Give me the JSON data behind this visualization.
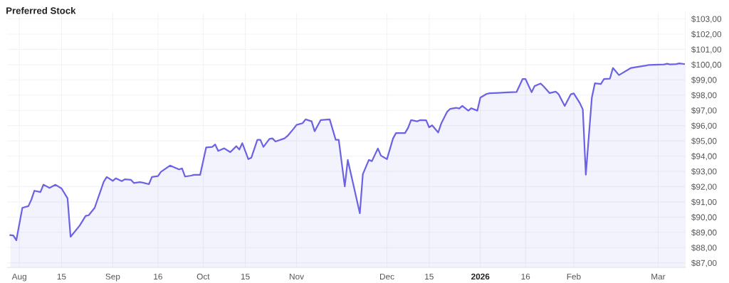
{
  "chart_data": {
    "type": "area",
    "title": "Preferred Stock",
    "x": [
      "2025-07-29",
      "2025-07-30",
      "2025-07-31",
      "2025-08-02",
      "2025-08-04",
      "2025-08-05",
      "2025-08-06",
      "2025-08-08",
      "2025-08-09",
      "2025-08-11",
      "2025-08-13",
      "2025-08-15",
      "2025-08-17",
      "2025-08-18",
      "2025-08-21",
      "2025-08-23",
      "2025-08-24",
      "2025-08-26",
      "2025-08-29",
      "2025-08-30",
      "2025-09-01",
      "2025-09-02",
      "2025-09-04",
      "2025-09-05",
      "2025-09-07",
      "2025-09-08",
      "2025-09-10",
      "2025-09-11",
      "2025-09-13",
      "2025-09-14",
      "2025-09-16",
      "2025-09-17",
      "2025-09-20",
      "2025-09-23",
      "2025-09-24",
      "2025-09-25",
      "2025-09-27",
      "2025-09-28",
      "2025-09-30",
      "2025-10-02",
      "2025-10-04",
      "2025-10-05",
      "2025-10-06",
      "2025-10-08",
      "2025-10-10",
      "2025-10-12",
      "2025-10-13",
      "2025-10-14",
      "2025-10-16",
      "2025-10-17",
      "2025-10-19",
      "2025-10-20",
      "2025-10-21",
      "2025-10-23",
      "2025-10-24",
      "2025-10-25",
      "2025-10-28",
      "2025-10-29",
      "2025-10-31",
      "2025-11-01",
      "2025-11-03",
      "2025-11-04",
      "2025-11-06",
      "2025-11-07",
      "2025-11-09",
      "2025-11-12",
      "2025-11-14",
      "2025-11-15",
      "2025-11-17",
      "2025-11-18",
      "2025-11-22",
      "2025-11-23",
      "2025-11-25",
      "2025-11-26",
      "2025-11-28",
      "2025-11-29",
      "2025-12-01",
      "2025-12-03",
      "2025-12-04",
      "2025-12-07",
      "2025-12-08",
      "2025-12-09",
      "2025-12-11",
      "2025-12-12",
      "2025-12-14",
      "2025-12-15",
      "2025-12-16",
      "2025-12-18",
      "2025-12-19",
      "2025-12-21",
      "2025-12-22",
      "2025-12-24",
      "2025-12-25",
      "2025-12-26",
      "2025-12-28",
      "2025-12-29",
      "2025-12-31",
      "2026-01-01",
      "2026-01-03",
      "2026-01-04",
      "2026-01-07",
      "2026-01-10",
      "2026-01-13",
      "2026-01-15",
      "2026-01-16",
      "2026-01-18",
      "2026-01-19",
      "2026-01-21",
      "2026-01-22",
      "2026-01-24",
      "2026-01-26",
      "2026-01-27",
      "2026-01-29",
      "2026-01-31",
      "2026-02-01",
      "2026-02-03",
      "2026-02-04",
      "2026-02-05",
      "2026-02-07",
      "2026-02-08",
      "2026-02-10",
      "2026-02-11",
      "2026-02-13",
      "2026-02-14",
      "2026-02-16",
      "2026-02-20",
      "2026-02-21",
      "2026-02-25",
      "2026-02-26",
      "2026-03-03",
      "2026-03-04",
      "2026-03-05",
      "2026-03-07",
      "2026-03-08",
      "2026-03-10"
    ],
    "series": [
      {
        "color": "#6c62e4",
        "values": [
          88.82,
          88.8,
          88.48,
          90.61,
          90.72,
          91.15,
          91.73,
          91.64,
          92.13,
          91.92,
          92.12,
          91.88,
          91.23,
          88.71,
          89.44,
          90.08,
          90.12,
          90.61,
          92.32,
          92.63,
          92.38,
          92.54,
          92.36,
          92.48,
          92.45,
          92.24,
          92.29,
          92.26,
          92.16,
          92.63,
          92.69,
          92.97,
          93.38,
          93.13,
          93.19,
          92.66,
          92.72,
          92.77,
          92.77,
          94.57,
          94.6,
          94.76,
          94.34,
          94.51,
          94.26,
          94.65,
          94.43,
          94.85,
          93.8,
          93.9,
          95.07,
          95.07,
          94.6,
          95.13,
          95.16,
          94.96,
          95.16,
          95.32,
          95.79,
          96.05,
          96.16,
          96.41,
          96.28,
          95.63,
          96.36,
          96.41,
          95.07,
          95.07,
          92.01,
          93.75,
          90.25,
          92.82,
          93.75,
          93.67,
          94.5,
          94.03,
          93.8,
          95.15,
          95.51,
          95.51,
          95.85,
          96.36,
          96.28,
          96.36,
          96.35,
          95.89,
          96.02,
          95.55,
          96.13,
          96.91,
          97.1,
          97.17,
          97.12,
          97.29,
          96.98,
          97.14,
          96.98,
          97.84,
          98.07,
          98.12,
          98.15,
          98.18,
          98.2,
          99.05,
          99.05,
          98.19,
          98.59,
          98.76,
          98.57,
          98.13,
          98.23,
          98.05,
          97.29,
          98.05,
          98.11,
          97.48,
          97.06,
          92.78,
          97.84,
          98.77,
          98.73,
          99.05,
          99.08,
          99.78,
          99.31,
          99.78,
          99.81,
          99.94,
          99.98,
          100.01,
          100.06,
          100.01,
          100.03,
          100.08,
          100.03
        ]
      }
    ],
    "xlim": [
      "2025-07-28",
      "2026-03-10"
    ],
    "xticks": [
      {
        "value": "2025-08-01",
        "label": "Aug"
      },
      {
        "value": "2025-08-15",
        "label": "15"
      },
      {
        "value": "2025-09-01",
        "label": "Sep"
      },
      {
        "value": "2025-09-16",
        "label": "16"
      },
      {
        "value": "2025-10-01",
        "label": "Oct"
      },
      {
        "value": "2025-10-15",
        "label": "15"
      },
      {
        "value": "2025-11-01",
        "label": "Nov"
      },
      {
        "value": "2025-12-01",
        "label": "Dec"
      },
      {
        "value": "2025-12-15",
        "label": "15"
      },
      {
        "value": "2026-01-01",
        "label": "2026"
      },
      {
        "value": "2026-01-16",
        "label": "16"
      },
      {
        "value": "2026-02-01",
        "label": "Feb"
      },
      {
        "value": "2026-03-01",
        "label": "Mar"
      }
    ],
    "ylim": [
      86.7,
      103.4
    ],
    "yticks": [
      {
        "value": 87,
        "label": "$87,00"
      },
      {
        "value": 88,
        "label": "$88,00"
      },
      {
        "value": 89,
        "label": "$89,00"
      },
      {
        "value": 90,
        "label": "$90,00"
      },
      {
        "value": 91,
        "label": "$91,00"
      },
      {
        "value": 92,
        "label": "$92,00"
      },
      {
        "value": 93,
        "label": "$93,00"
      },
      {
        "value": 94,
        "label": "$94,00"
      },
      {
        "value": 95,
        "label": "$95,00"
      },
      {
        "value": 96,
        "label": "$96,00"
      },
      {
        "value": 97,
        "label": "$97,00"
      },
      {
        "value": 98,
        "label": "$98,00"
      },
      {
        "value": 99,
        "label": "$99,00"
      },
      {
        "value": 100,
        "label": "$100,00"
      },
      {
        "value": 101,
        "label": "$101,00"
      },
      {
        "value": 102,
        "label": "$102,00"
      },
      {
        "value": 103,
        "label": "$103,00"
      }
    ],
    "grid": true
  }
}
